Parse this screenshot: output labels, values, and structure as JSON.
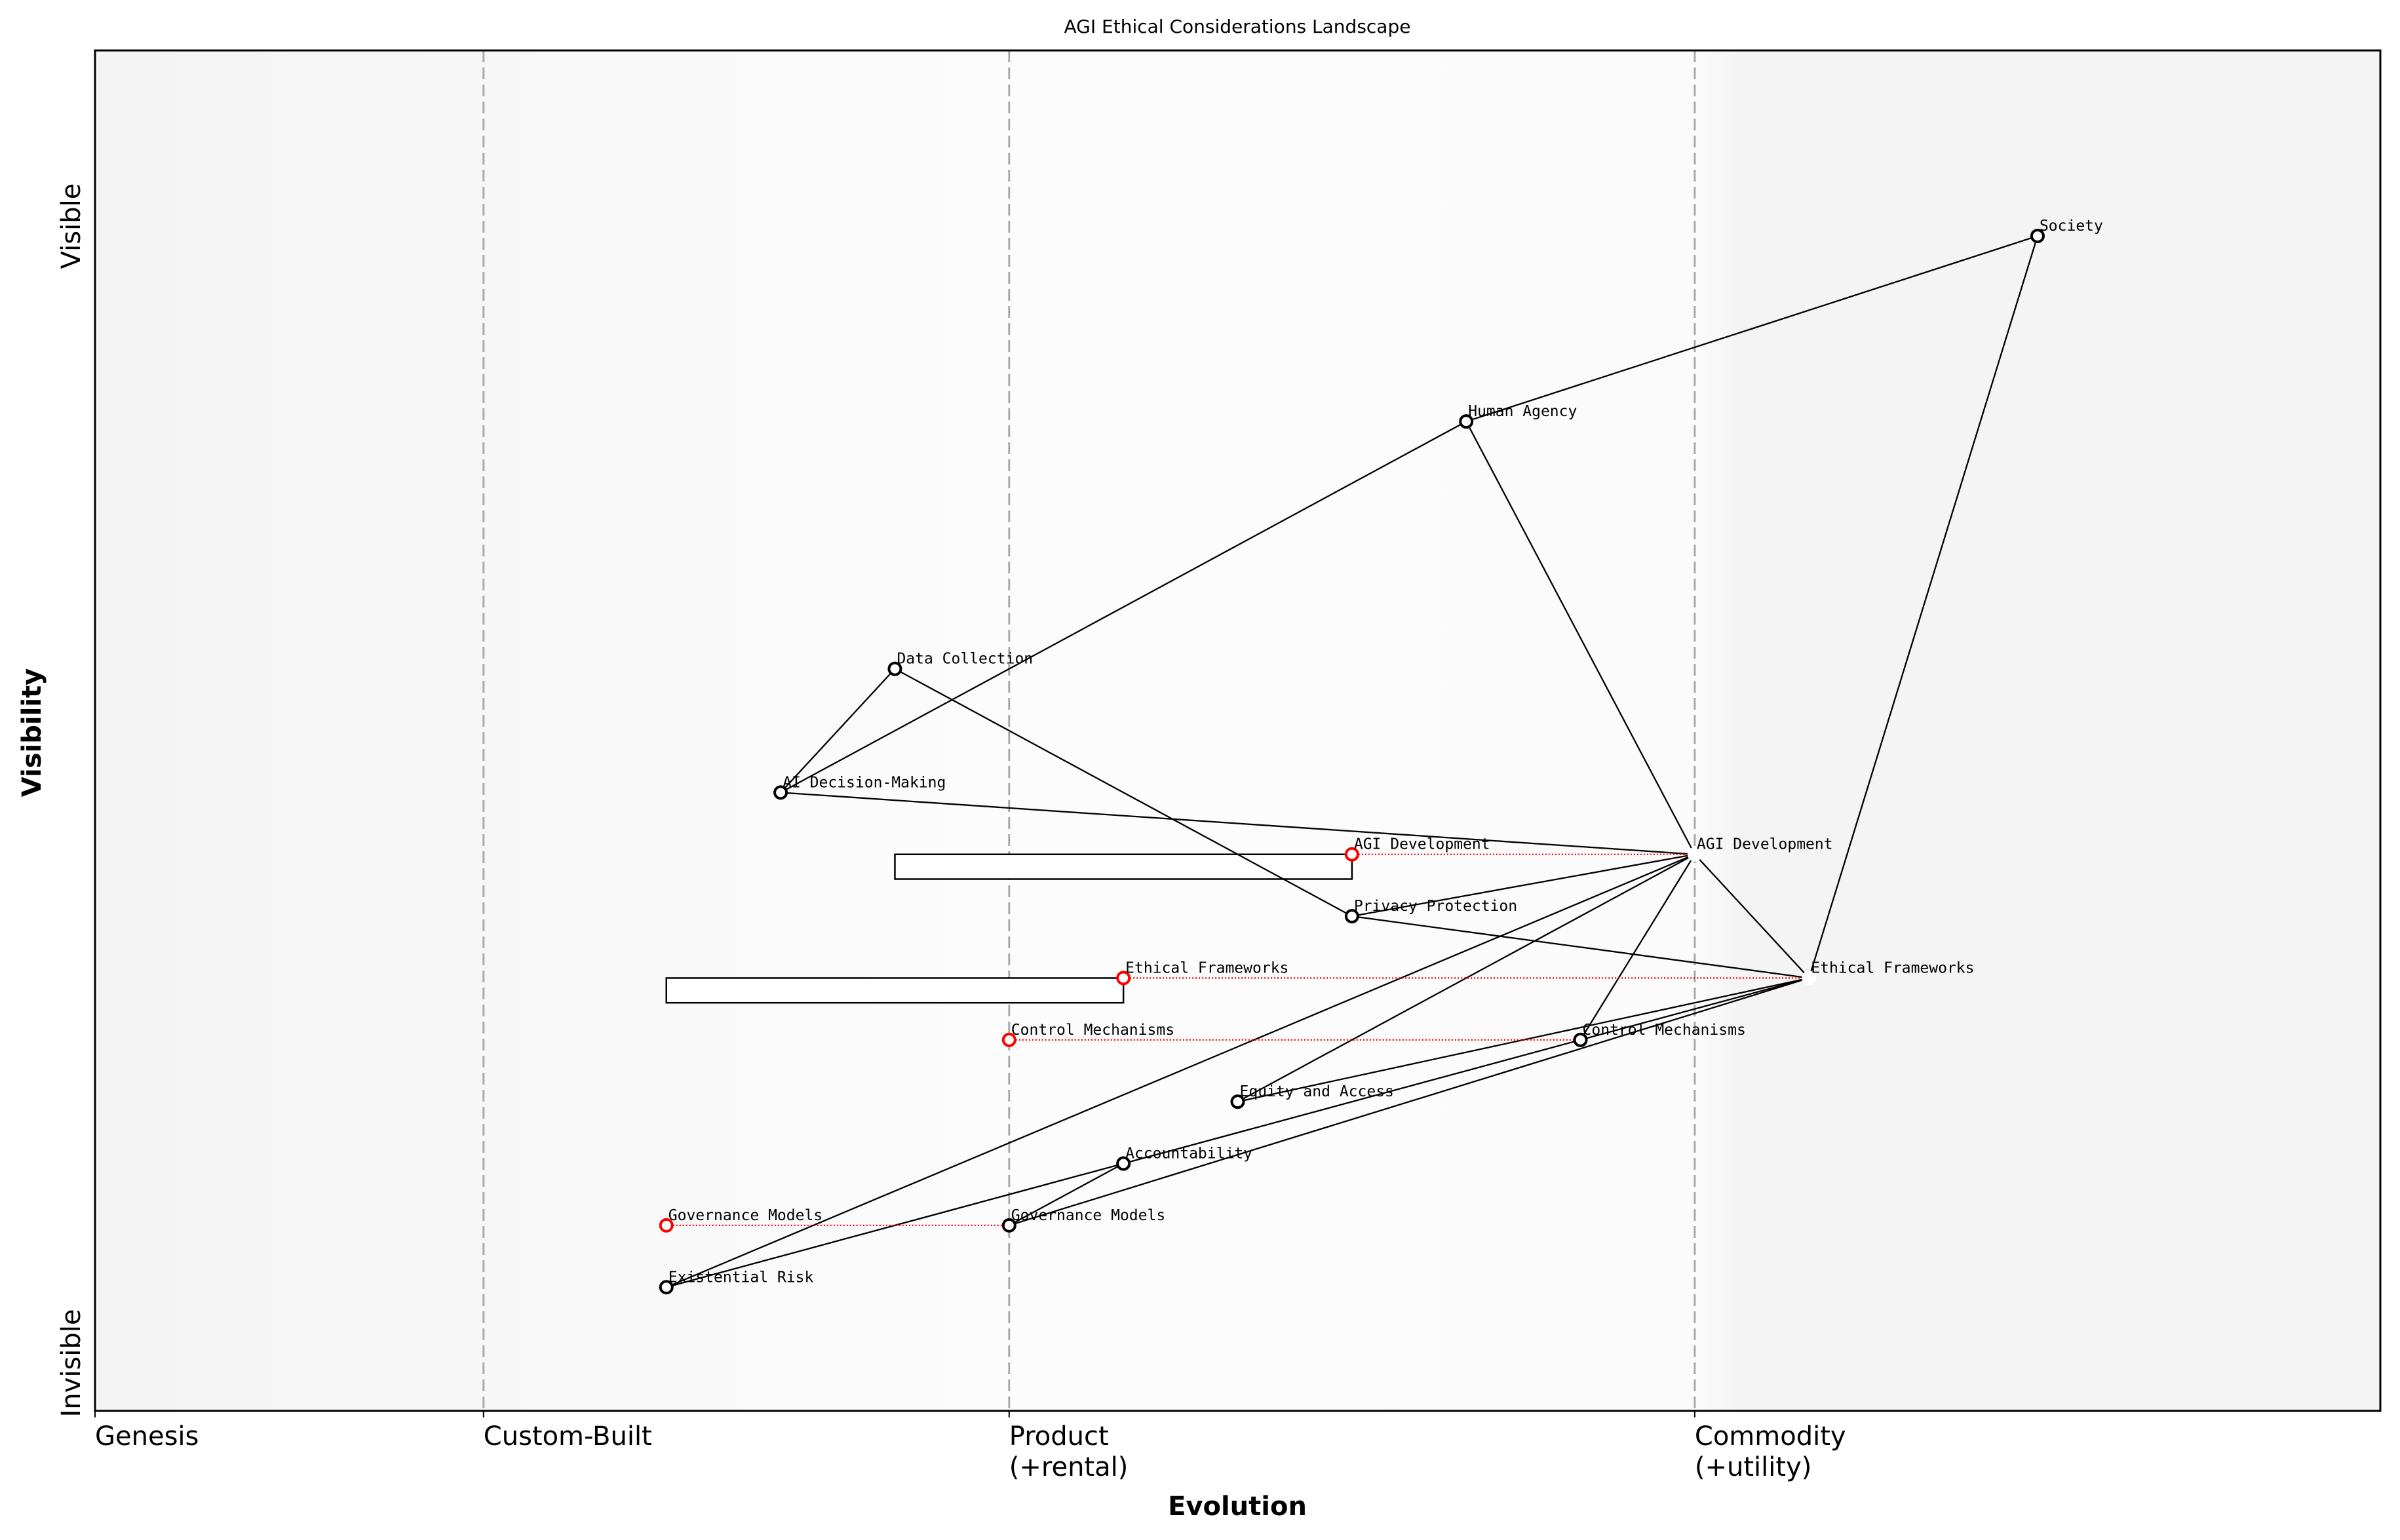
{
  "chart_data": {
    "type": "wardley-map",
    "title": "AGI Ethical Considerations Landscape",
    "xlabel": "Evolution",
    "ylabel": "Visibility",
    "xlim": [
      0,
      1
    ],
    "ylim": [
      0,
      1.1
    ],
    "y_ticks": {
      "top": "Visible",
      "bottom": "Invisible"
    },
    "stages": [
      {
        "label": "Genesis",
        "x": 0
      },
      {
        "label": "Custom-Built",
        "x": 0.17
      },
      {
        "label": "Product\n(+rental)",
        "x": 0.4
      },
      {
        "label": "Commodity\n(+utility)",
        "x": 0.7
      }
    ],
    "components": [
      {
        "id": "society",
        "label": "Society",
        "x": 0.85,
        "y": 0.95
      },
      {
        "id": "human",
        "label": "Human Agency",
        "x": 0.6,
        "y": 0.8
      },
      {
        "id": "data",
        "label": "Data Collection",
        "x": 0.35,
        "y": 0.6
      },
      {
        "id": "aidm",
        "label": "AI Decision-Making",
        "x": 0.3,
        "y": 0.5
      },
      {
        "id": "agi",
        "label": "AGI Development",
        "x": 0.7,
        "y": 0.45,
        "hidden_marker": true
      },
      {
        "id": "privacy",
        "label": "Privacy Protection",
        "x": 0.55,
        "y": 0.4
      },
      {
        "id": "ethics",
        "label": "Ethical Frameworks",
        "x": 0.75,
        "y": 0.35,
        "hidden_marker": true
      },
      {
        "id": "control",
        "label": "Control Mechanisms",
        "x": 0.65,
        "y": 0.3
      },
      {
        "id": "equity",
        "label": "Equity and Access",
        "x": 0.5,
        "y": 0.25
      },
      {
        "id": "account",
        "label": "Accountability",
        "x": 0.45,
        "y": 0.2
      },
      {
        "id": "gov",
        "label": "Governance Models",
        "x": 0.4,
        "y": 0.15
      },
      {
        "id": "exist",
        "label": "Existential Risk",
        "x": 0.25,
        "y": 0.1
      }
    ],
    "evolutions": [
      {
        "label": "AGI Development",
        "x": 0.55,
        "y": 0.45,
        "to": "agi"
      },
      {
        "label": "Ethical Frameworks",
        "x": 0.45,
        "y": 0.35,
        "to": "ethics"
      },
      {
        "label": "Control Mechanisms",
        "x": 0.4,
        "y": 0.3,
        "to": "control"
      },
      {
        "label": "Governance Models",
        "x": 0.25,
        "y": 0.15,
        "to": "gov"
      }
    ],
    "inertia": [
      {
        "x_start": 0.35,
        "x_end": 0.55,
        "y_top": 0.45,
        "y_bottom": 0.43
      },
      {
        "x_start": 0.25,
        "x_end": 0.45,
        "y_top": 0.35,
        "y_bottom": 0.33
      }
    ],
    "links": [
      [
        "society",
        "human"
      ],
      [
        "society",
        "ethics"
      ],
      [
        "human",
        "aidm"
      ],
      [
        "human",
        "agi"
      ],
      [
        "data",
        "aidm"
      ],
      [
        "data",
        "privacy"
      ],
      [
        "aidm",
        "agi"
      ],
      [
        "agi",
        "privacy"
      ],
      [
        "agi",
        "exist"
      ],
      [
        "agi",
        "equity"
      ],
      [
        "agi",
        "control"
      ],
      [
        "agi",
        "ethics"
      ],
      [
        "privacy",
        "ethics"
      ],
      [
        "equity",
        "ethics"
      ],
      [
        "account",
        "control"
      ],
      [
        "control",
        "ethics"
      ],
      [
        "gov",
        "ethics"
      ],
      [
        "gov",
        "account"
      ],
      [
        "exist",
        "account"
      ]
    ],
    "colors": {
      "evolution": "#ff0000",
      "link": "#000000",
      "grid": "#aaaaaa"
    }
  }
}
